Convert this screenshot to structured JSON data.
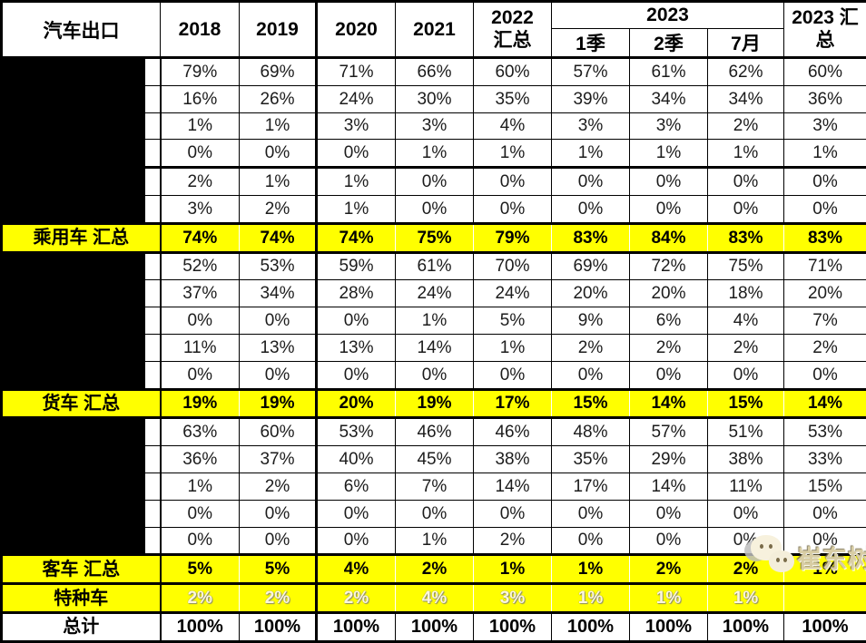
{
  "header": {
    "corner": "汽车出口",
    "years": [
      "2018",
      "2019",
      "2020",
      "2021"
    ],
    "col_2022": {
      "line1": "2022",
      "line2": "汇总"
    },
    "group_2023": "2023",
    "subcols_2023": [
      "1季",
      "2季",
      "7月"
    ],
    "col_2023_total": {
      "line1": "2023 汇",
      "line2": "总"
    }
  },
  "watermark": {
    "text": "崔东树",
    "icon": "wechat-logo-icon"
  },
  "colors": {
    "highlight_yellow": "#ffff00",
    "grid_border": "#000000",
    "redaction_black": "#000000",
    "special_row_value_text": "#fcf7dd",
    "watermark_text": "#d8cda4"
  },
  "chart_data": {
    "type": "table",
    "title": "汽车出口",
    "columns": [
      "2018",
      "2019",
      "2020",
      "2021",
      "2022 汇总",
      "2023 1季",
      "2023 2季",
      "2023 7月",
      "2023 汇总"
    ],
    "rows": [
      {
        "label": "",
        "type": "redacted",
        "values": [
          "79%",
          "69%",
          "71%",
          "66%",
          "60%",
          "57%",
          "61%",
          "62%",
          "60%"
        ]
      },
      {
        "label": "",
        "type": "redacted",
        "values": [
          "16%",
          "26%",
          "24%",
          "30%",
          "35%",
          "39%",
          "34%",
          "34%",
          "36%"
        ]
      },
      {
        "label": "",
        "type": "redacted",
        "values": [
          "1%",
          "1%",
          "3%",
          "3%",
          "4%",
          "3%",
          "3%",
          "2%",
          "3%"
        ]
      },
      {
        "label": "",
        "type": "redacted",
        "values": [
          "0%",
          "0%",
          "0%",
          "1%",
          "1%",
          "1%",
          "1%",
          "1%",
          "1%"
        ]
      },
      {
        "label": "",
        "type": "redacted",
        "values": [
          "2%",
          "1%",
          "1%",
          "0%",
          "0%",
          "0%",
          "0%",
          "0%",
          "0%"
        ]
      },
      {
        "label": "",
        "type": "redacted",
        "values": [
          "3%",
          "2%",
          "1%",
          "0%",
          "0%",
          "0%",
          "0%",
          "0%",
          "0%"
        ]
      },
      {
        "label": "乘用车 汇总",
        "type": "summary",
        "values": [
          "74%",
          "74%",
          "74%",
          "75%",
          "79%",
          "83%",
          "84%",
          "83%",
          "83%"
        ]
      },
      {
        "label": "",
        "type": "redacted",
        "values": [
          "52%",
          "53%",
          "59%",
          "61%",
          "70%",
          "69%",
          "72%",
          "75%",
          "71%"
        ]
      },
      {
        "label": "",
        "type": "redacted",
        "values": [
          "37%",
          "34%",
          "28%",
          "24%",
          "24%",
          "20%",
          "20%",
          "18%",
          "20%"
        ]
      },
      {
        "label": "",
        "type": "redacted",
        "values": [
          "0%",
          "0%",
          "0%",
          "1%",
          "5%",
          "9%",
          "6%",
          "4%",
          "7%"
        ]
      },
      {
        "label": "",
        "type": "redacted",
        "values": [
          "11%",
          "13%",
          "13%",
          "14%",
          "1%",
          "2%",
          "2%",
          "2%",
          "2%"
        ]
      },
      {
        "label": "",
        "type": "redacted",
        "values": [
          "0%",
          "0%",
          "0%",
          "0%",
          "0%",
          "0%",
          "0%",
          "0%",
          "0%"
        ]
      },
      {
        "label": "货车 汇总",
        "type": "summary",
        "values": [
          "19%",
          "19%",
          "20%",
          "19%",
          "17%",
          "15%",
          "14%",
          "15%",
          "14%"
        ]
      },
      {
        "label": "",
        "type": "redacted",
        "values": [
          "63%",
          "60%",
          "53%",
          "46%",
          "46%",
          "48%",
          "57%",
          "51%",
          "53%"
        ]
      },
      {
        "label": "",
        "type": "redacted",
        "values": [
          "36%",
          "37%",
          "40%",
          "45%",
          "38%",
          "35%",
          "29%",
          "38%",
          "33%"
        ]
      },
      {
        "label": "",
        "type": "redacted",
        "values": [
          "1%",
          "2%",
          "6%",
          "7%",
          "14%",
          "17%",
          "14%",
          "11%",
          "15%"
        ]
      },
      {
        "label": "",
        "type": "redacted",
        "values": [
          "0%",
          "0%",
          "0%",
          "0%",
          "0%",
          "0%",
          "0%",
          "0%",
          "0%"
        ]
      },
      {
        "label": "",
        "type": "redacted",
        "values": [
          "0%",
          "0%",
          "0%",
          "1%",
          "2%",
          "0%",
          "0%",
          "0%",
          "0%"
        ]
      },
      {
        "label": "客车 汇总",
        "type": "summary",
        "values": [
          "5%",
          "5%",
          "4%",
          "2%",
          "1%",
          "1%",
          "2%",
          "2%",
          "1%"
        ]
      },
      {
        "label": "特种车",
        "type": "special",
        "values": [
          "2%",
          "2%",
          "2%",
          "4%",
          "3%",
          "1%",
          "1%",
          "1%",
          ""
        ]
      },
      {
        "label": "总计",
        "type": "total",
        "values": [
          "100%",
          "100%",
          "100%",
          "100%",
          "100%",
          "100%",
          "100%",
          "100%",
          "100%"
        ]
      }
    ]
  }
}
